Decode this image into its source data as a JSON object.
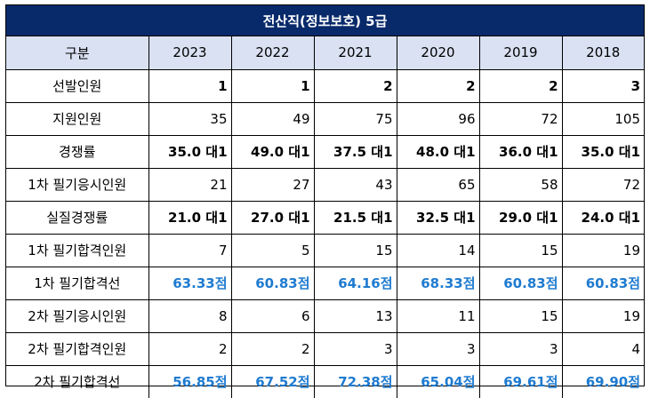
{
  "title": "전산직(정보보호) 5급",
  "header": {
    "label": "구분",
    "years": [
      "2023",
      "2022",
      "2021",
      "2020",
      "2019",
      "2018"
    ]
  },
  "rows": [
    {
      "label": "선발인원",
      "values": [
        "1",
        "1",
        "2",
        "2",
        "2",
        "3"
      ]
    },
    {
      "label": "지원인원",
      "values": [
        "35",
        "49",
        "75",
        "96",
        "72",
        "105"
      ]
    },
    {
      "label": "경쟁률",
      "values": [
        "35.0 대1",
        "49.0 대1",
        "37.5 대1",
        "48.0 대1",
        "36.0 대1",
        "35.0 대1"
      ]
    },
    {
      "label": "1차 필기응시인원",
      "values": [
        "21",
        "27",
        "43",
        "65",
        "58",
        "72"
      ]
    },
    {
      "label": "실질경쟁률",
      "values": [
        "21.0 대1",
        "27.0 대1",
        "21.5 대1",
        "32.5 대1",
        "29.0 대1",
        "24.0 대1"
      ]
    },
    {
      "label": "1차 필기합격인원",
      "values": [
        "7",
        "5",
        "15",
        "14",
        "15",
        "19"
      ]
    },
    {
      "label": "1차 필기합격선",
      "values": [
        "63.33점",
        "60.83점",
        "64.16점",
        "68.33점",
        "60.83점",
        "60.83점"
      ]
    },
    {
      "label": "2차 필기응시인원",
      "values": [
        "8",
        "6",
        "13",
        "11",
        "15",
        "19"
      ]
    },
    {
      "label": "2차 필기합격인원",
      "values": [
        "2",
        "2",
        "3",
        "3",
        "3",
        "4"
      ]
    },
    {
      "label": "2차 필기합격선",
      "values": [
        "56.85점",
        "67.52점",
        "72.38점",
        "65.04점",
        "69.61점",
        "69.90점"
      ]
    }
  ],
  "colors": {
    "title_background": "#082a6b",
    "header_background": "#d9e1f2",
    "score_text": "#1f7bd0"
  }
}
